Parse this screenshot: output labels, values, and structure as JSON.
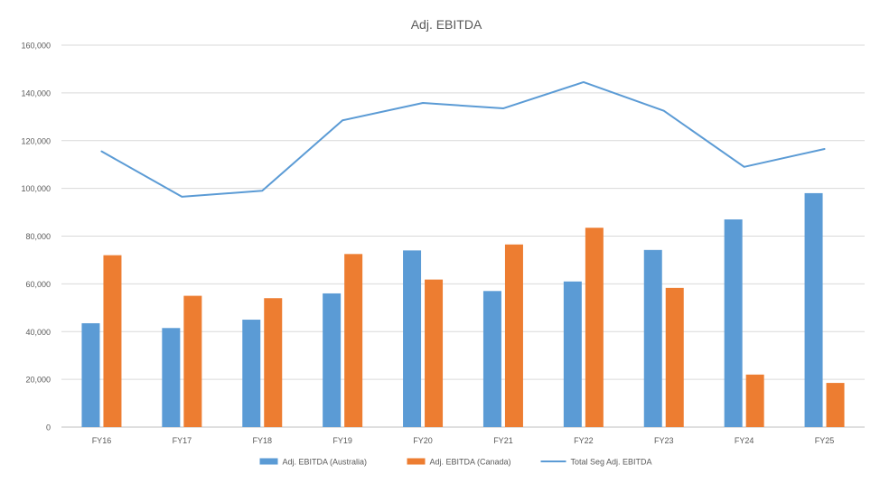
{
  "chart_data": {
    "type": "bar",
    "title": "Adj. EBITDA",
    "categories": [
      "FY16",
      "FY17",
      "FY18",
      "FY19",
      "FY20",
      "FY21",
      "FY22",
      "FY23",
      "FY24",
      "FY25"
    ],
    "series": [
      {
        "name": "Adj. EBITDA (Australia)",
        "type": "bar",
        "color": "#5B9BD5",
        "values": [
          43500,
          41500,
          45000,
          56000,
          74000,
          57000,
          61000,
          74200,
          87000,
          98000
        ]
      },
      {
        "name": "Adj. EBITDA (Canada)",
        "type": "bar",
        "color": "#ED7D31",
        "values": [
          72000,
          55000,
          54000,
          72500,
          61800,
          76500,
          83500,
          58300,
          22000,
          18500
        ]
      },
      {
        "name": "Total Seg Adj. EBITDA",
        "type": "line",
        "color": "#5B9BD5",
        "values": [
          115500,
          96500,
          99000,
          128500,
          135800,
          133500,
          144500,
          132500,
          109000,
          116500
        ]
      }
    ],
    "ylim": [
      0,
      160000
    ],
    "yticks": [
      0,
      20000,
      40000,
      60000,
      80000,
      100000,
      120000,
      140000,
      160000
    ],
    "ytick_labels": [
      "0",
      "20,000",
      "40,000",
      "60,000",
      "80,000",
      "100,000",
      "120,000",
      "140,000",
      "160,000"
    ],
    "grid": true,
    "legend_position": "bottom",
    "xlabel": "",
    "ylabel": ""
  }
}
